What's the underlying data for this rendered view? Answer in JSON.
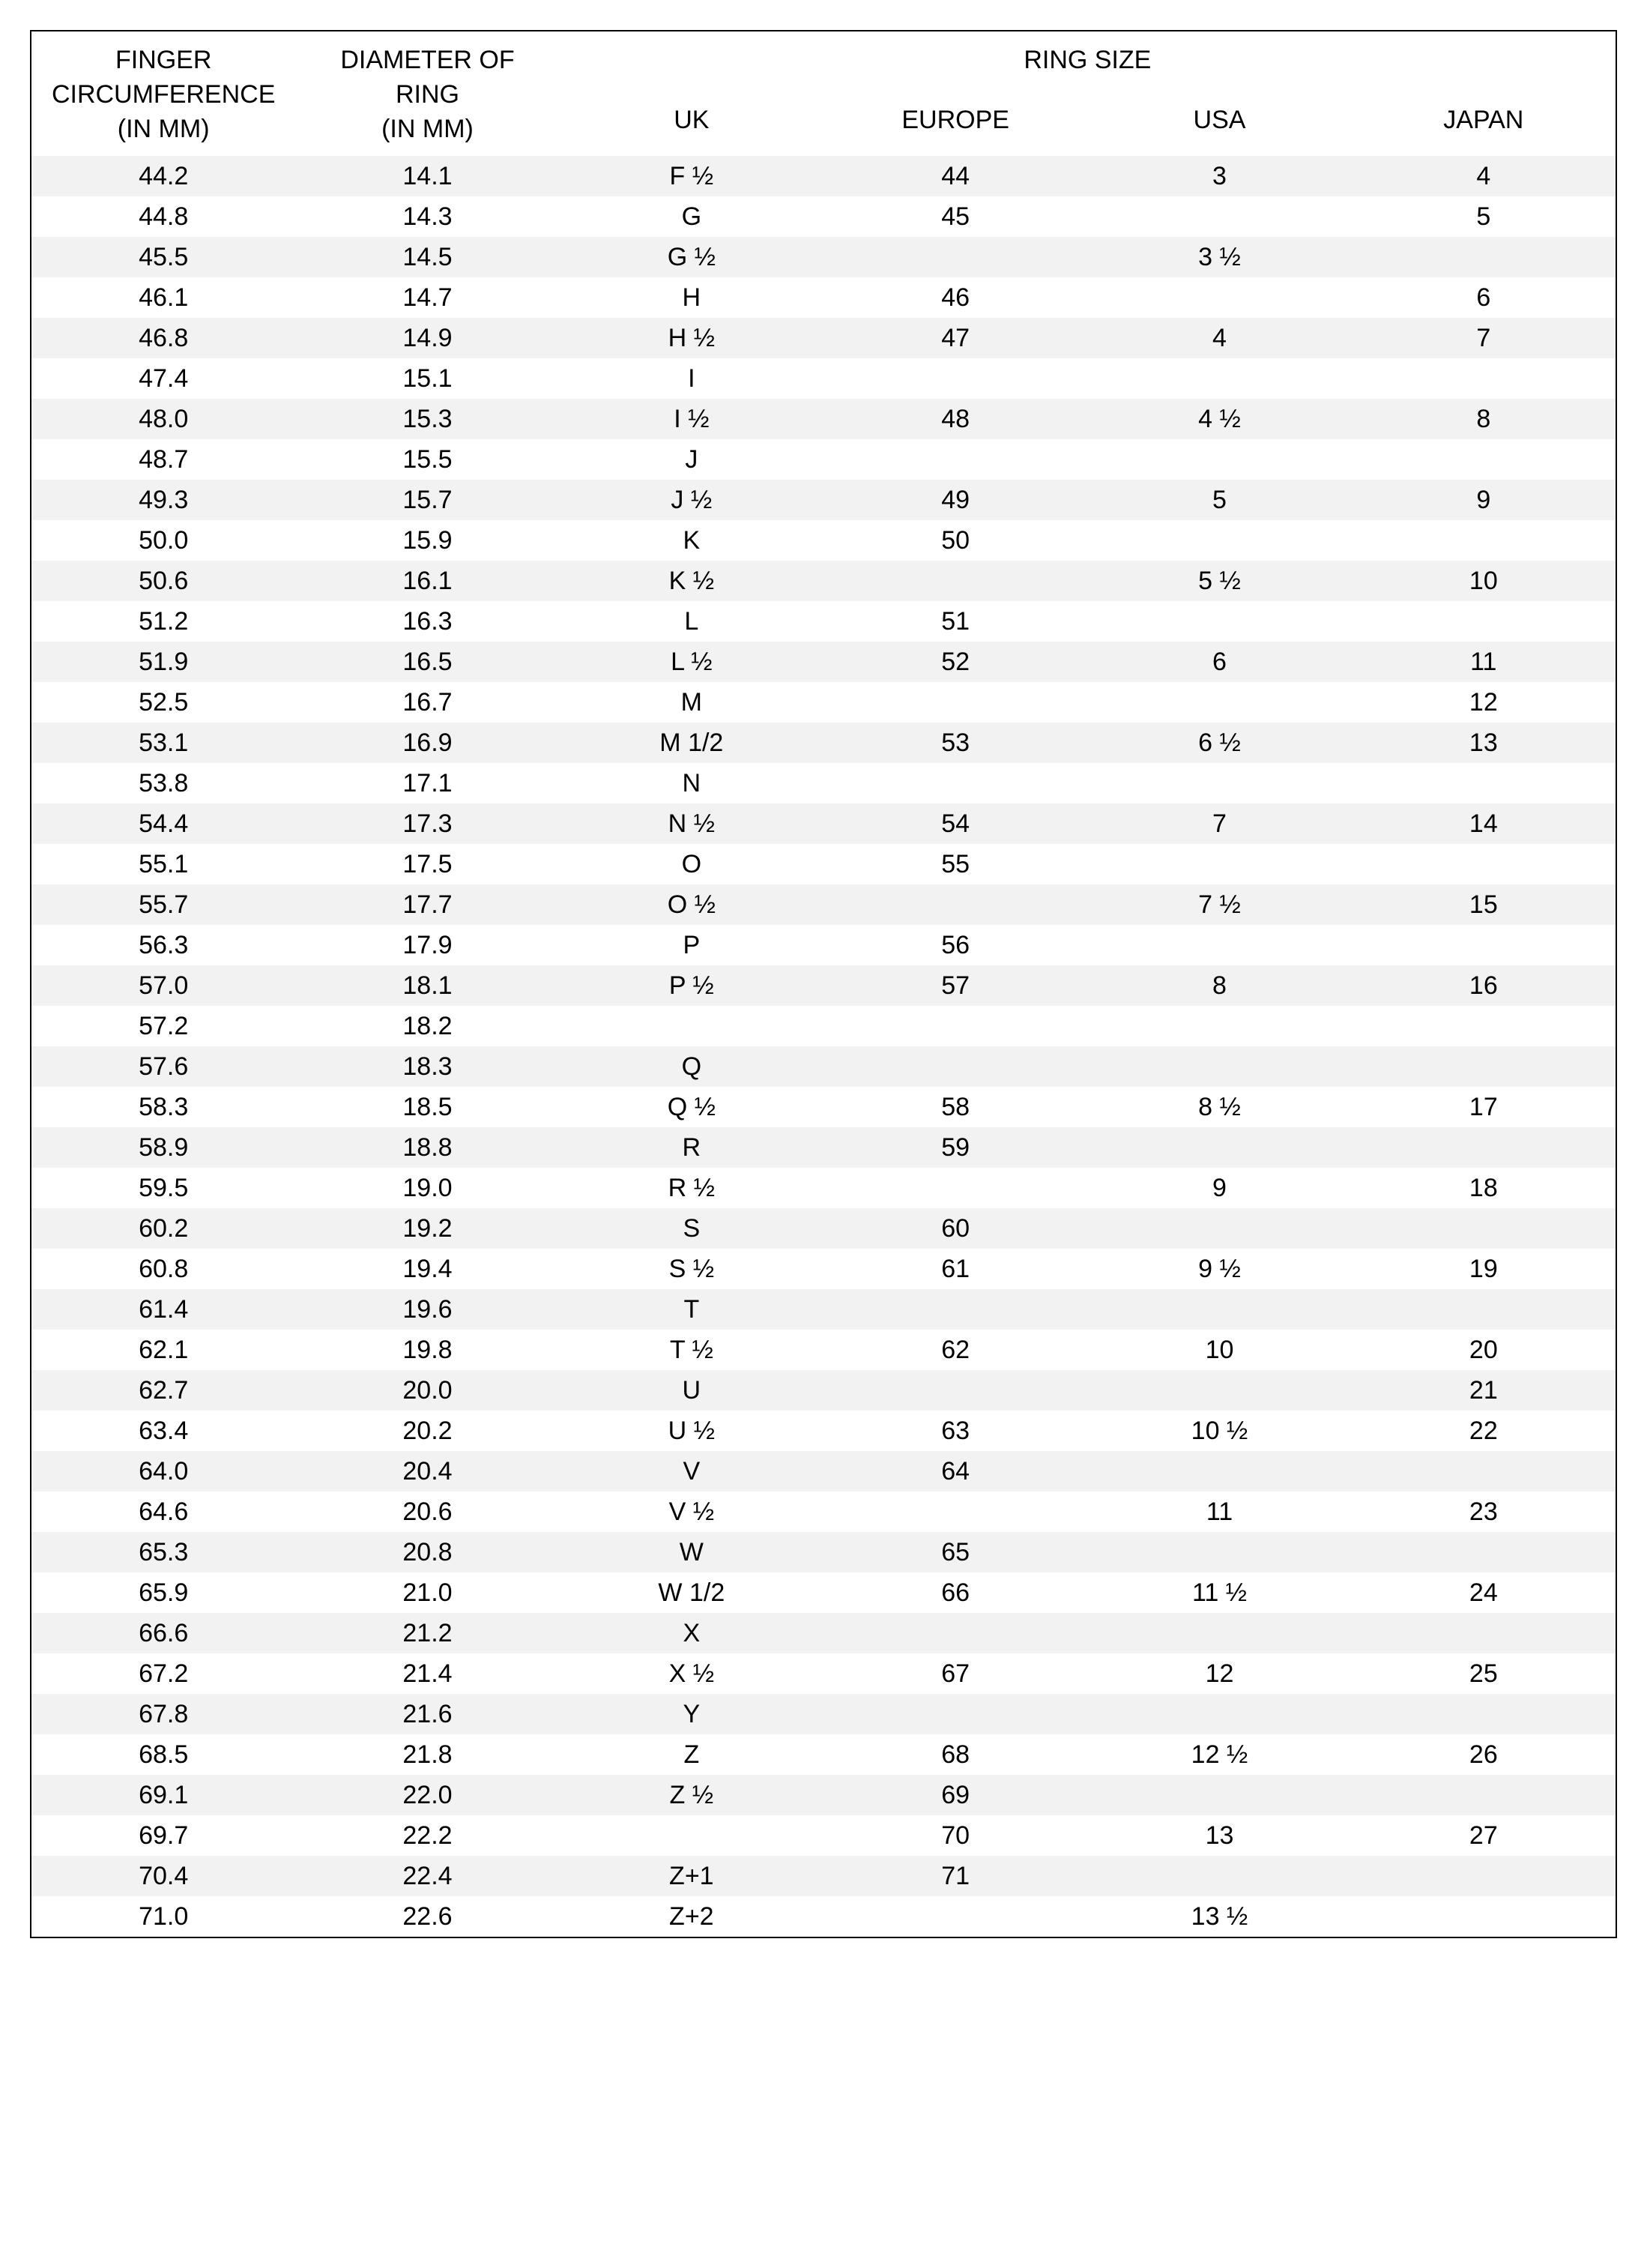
{
  "table": {
    "type": "table",
    "colors": {
      "border": "#000000",
      "row_odd_bg": "#f2f2f2",
      "row_even_bg": "#ffffff",
      "text": "#000000"
    },
    "spanner_label": "RING SIZE",
    "columns": [
      "FINGER\nCIRCUMFERENCE\n(IN MM)",
      "DIAMETER OF\nRING\n(IN MM)",
      "UK",
      "EUROPE",
      "USA",
      "JAPAN"
    ],
    "font_size_pt": 26,
    "rows": [
      [
        "44.2",
        "14.1",
        "F ½",
        "44",
        "3",
        "4"
      ],
      [
        "44.8",
        "14.3",
        "G",
        "45",
        "",
        "5"
      ],
      [
        "45.5",
        "14.5",
        "G ½",
        "",
        "3 ½",
        ""
      ],
      [
        "46.1",
        "14.7",
        "H",
        "46",
        "",
        "6"
      ],
      [
        "46.8",
        "14.9",
        "H ½",
        "47",
        "4",
        "7"
      ],
      [
        "47.4",
        "15.1",
        "I",
        "",
        "",
        ""
      ],
      [
        "48.0",
        "15.3",
        "I ½",
        "48",
        "4 ½",
        "8"
      ],
      [
        "48.7",
        "15.5",
        "J",
        "",
        "",
        ""
      ],
      [
        "49.3",
        "15.7",
        "J ½",
        "49",
        "5",
        "9"
      ],
      [
        "50.0",
        "15.9",
        "K",
        "50",
        "",
        ""
      ],
      [
        "50.6",
        "16.1",
        "K ½",
        "",
        "5 ½",
        "10"
      ],
      [
        "51.2",
        "16.3",
        "L",
        "51",
        "",
        ""
      ],
      [
        "51.9",
        "16.5",
        "L ½",
        "52",
        "6",
        "11"
      ],
      [
        "52.5",
        "16.7",
        "M",
        "",
        "",
        "12"
      ],
      [
        "53.1",
        "16.9",
        "M 1/2",
        "53",
        "6 ½",
        "13"
      ],
      [
        "53.8",
        "17.1",
        "N",
        "",
        "",
        ""
      ],
      [
        "54.4",
        "17.3",
        "N ½",
        "54",
        "7",
        "14"
      ],
      [
        "55.1",
        "17.5",
        "O",
        "55",
        "",
        ""
      ],
      [
        "55.7",
        "17.7",
        "O ½",
        "",
        "7 ½",
        "15"
      ],
      [
        "56.3",
        "17.9",
        "P",
        "56",
        "",
        ""
      ],
      [
        "57.0",
        "18.1",
        "P ½",
        "57",
        "8",
        "16"
      ],
      [
        "57.2",
        "18.2",
        "",
        "",
        "",
        ""
      ],
      [
        "57.6",
        "18.3",
        "Q",
        "",
        "",
        ""
      ],
      [
        "58.3",
        "18.5",
        "Q ½",
        "58",
        "8 ½",
        "17"
      ],
      [
        "58.9",
        "18.8",
        "R",
        "59",
        "",
        ""
      ],
      [
        "59.5",
        "19.0",
        "R ½",
        "",
        "9",
        "18"
      ],
      [
        "60.2",
        "19.2",
        "S",
        "60",
        "",
        ""
      ],
      [
        "60.8",
        "19.4",
        "S ½",
        "61",
        "9 ½",
        "19"
      ],
      [
        "61.4",
        "19.6",
        "T",
        "",
        "",
        ""
      ],
      [
        "62.1",
        "19.8",
        "T ½",
        "62",
        "10",
        "20"
      ],
      [
        "62.7",
        "20.0",
        "U",
        "",
        "",
        "21"
      ],
      [
        "63.4",
        "20.2",
        "U ½",
        "63",
        "10 ½",
        "22"
      ],
      [
        "64.0",
        "20.4",
        "V",
        "64",
        "",
        ""
      ],
      [
        "64.6",
        "20.6",
        "V ½",
        "",
        "11",
        "23"
      ],
      [
        "65.3",
        "20.8",
        "W",
        "65",
        "",
        ""
      ],
      [
        "65.9",
        "21.0",
        "W 1/2",
        "66",
        "11 ½",
        "24"
      ],
      [
        "66.6",
        "21.2",
        "X",
        "",
        "",
        ""
      ],
      [
        "67.2",
        "21.4",
        "X ½",
        "67",
        "12",
        "25"
      ],
      [
        "67.8",
        "21.6",
        "Y",
        "",
        "",
        ""
      ],
      [
        "68.5",
        "21.8",
        "Z",
        "68",
        "12 ½",
        "26"
      ],
      [
        "69.1",
        "22.0",
        "Z ½",
        "69",
        "",
        ""
      ],
      [
        "69.7",
        "22.2",
        "",
        "70",
        "13",
        "27"
      ],
      [
        "70.4",
        "22.4",
        "Z+1",
        "71",
        "",
        ""
      ],
      [
        "71.0",
        "22.6",
        "Z+2",
        "",
        "13 ½",
        ""
      ]
    ]
  }
}
